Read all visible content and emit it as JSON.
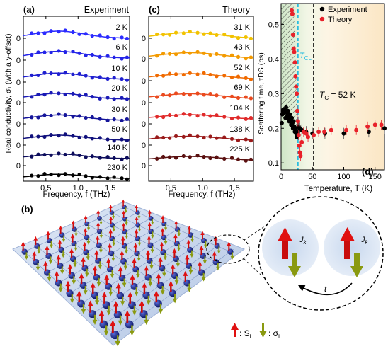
{
  "panel_labels": {
    "a": "(a)",
    "b": "(b)",
    "c": "(c)",
    "d": "(d)"
  },
  "chart_data": [
    {
      "type": "line",
      "panel": "(a)",
      "title": "Experiment",
      "xlabel": "Frequency, f (THz)",
      "ylabel": "Real conductivity, σ₁ (with a y-offset)",
      "xlim": [
        0.15,
        1.8
      ],
      "xticks": [
        "0.5",
        "1.0",
        "1.5"
      ],
      "yticks": [
        "0",
        "0",
        "0",
        "0",
        "0",
        "0",
        "0"
      ],
      "series": [
        {
          "name": "2 K",
          "color": "#2b2bff"
        },
        {
          "name": "6 K",
          "color": "#2424e8"
        },
        {
          "name": "10 K",
          "color": "#1f1fd0"
        },
        {
          "name": "20 K",
          "color": "#1a1ab6"
        },
        {
          "name": "30 K",
          "color": "#15159a"
        },
        {
          "name": "50 K",
          "color": "#10107c"
        },
        {
          "name": "140 K",
          "color": "#0c0c5c"
        },
        {
          "name": "230 K",
          "color": "#000000"
        }
      ]
    },
    {
      "type": "line",
      "panel": "(c)",
      "title": "Theory",
      "xlabel": "Frequency, f (THz)",
      "ylabel": "",
      "xlim": [
        0.15,
        1.8
      ],
      "xticks": [
        "0.5",
        "1.0",
        "1.5"
      ],
      "yticks": [
        "0",
        "0",
        "0",
        "0",
        "0",
        "0",
        "0"
      ],
      "series": [
        {
          "name": "31 K",
          "color": "#f2c200"
        },
        {
          "name": "43 K",
          "color": "#f39a00"
        },
        {
          "name": "52 K",
          "color": "#f06a00"
        },
        {
          "name": "69 K",
          "color": "#ea4a1e"
        },
        {
          "name": "104 K",
          "color": "#e02a2a"
        },
        {
          "name": "138 K",
          "color": "#9a1a1a"
        },
        {
          "name": "225 K",
          "color": "#5a1010"
        }
      ]
    },
    {
      "type": "scatter",
      "panel": "(d)",
      "xlabel": "Temperature, T (K)",
      "ylabel": "Scattering time, τDS (ps)",
      "xlim": [
        0,
        165
      ],
      "ylim": [
        0.08,
        0.56
      ],
      "xticks": [
        0,
        50,
        100,
        150
      ],
      "yticks": [
        0.1,
        0.2,
        0.3,
        0.4,
        0.5
      ],
      "annotations": {
        "tcl": "T",
        "tcl_sub": "CL",
        "tc": "T",
        "tc_sub": "C",
        "tc_value": " = 52 K"
      },
      "legend": [
        "Experiment",
        "Theory"
      ],
      "legend_position": "top-right",
      "tcl_value": 27,
      "tc_value": 52,
      "series": [
        {
          "name": "Experiment",
          "color": "#000000",
          "x": [
            1,
            2,
            3,
            4,
            5,
            6,
            7,
            8,
            9,
            10,
            11,
            12,
            13,
            14,
            15,
            16,
            17,
            18,
            19,
            20,
            21,
            22,
            23,
            24,
            25,
            26,
            27,
            28,
            30,
            33,
            40,
            50,
            70,
            100,
            140,
            165
          ],
          "y": [
            0.215,
            0.24,
            0.25,
            0.255,
            0.245,
            0.25,
            0.23,
            0.26,
            0.245,
            0.235,
            0.25,
            0.23,
            0.22,
            0.24,
            0.225,
            0.21,
            0.23,
            0.215,
            0.2,
            0.22,
            0.205,
            0.19,
            0.2,
            0.185,
            0.175,
            0.2,
            0.19,
            0.205,
            0.2,
            0.195,
            0.19,
            0.185,
            0.185,
            0.185,
            0.19,
            0.2
          ]
        },
        {
          "name": "Theory",
          "color": "#e8212a",
          "x": [
            17,
            18,
            19,
            20,
            21,
            22,
            23,
            24,
            25,
            26,
            27,
            28,
            29,
            30,
            31,
            33,
            36,
            40,
            43,
            52,
            60,
            69,
            80,
            104,
            120,
            138,
            150,
            160
          ],
          "y": [
            0.54,
            0.53,
            0.47,
            0.43,
            0.42,
            0.39,
            0.35,
            0.32,
            0.3,
            0.25,
            0.22,
            0.18,
            0.15,
            0.13,
            0.12,
            0.16,
            0.19,
            0.185,
            0.175,
            0.18,
            0.19,
            0.19,
            0.195,
            0.195,
            0.195,
            0.205,
            0.21,
            0.21
          ]
        }
      ]
    }
  ],
  "lattice_legend": {
    "s_label": ": S",
    "s_sub": "i",
    "sigma_label": ": σ",
    "sigma_sub": "i"
  },
  "inset_labels": {
    "jk1": "J",
    "jk1_sub": "k",
    "jk2": "J",
    "jk2_sub": "k",
    "hop": "t"
  },
  "colors": {
    "spin_red": "#e01010",
    "spin_green": "#8a9a10",
    "atom_blue": "#1a2a9a",
    "plane": "#c9d6ec"
  }
}
